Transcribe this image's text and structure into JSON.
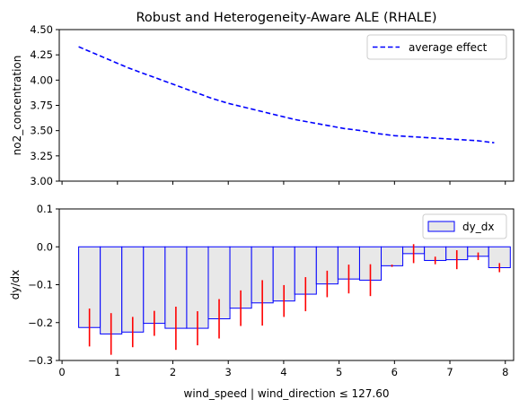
{
  "chart_data": [
    {
      "type": "line",
      "title": "Robust and Heterogeneity-Aware ALE (RHALE)",
      "xlabel": "",
      "ylabel": "no2_concentration",
      "xlim": [
        -0.05,
        8.15
      ],
      "ylim": [
        3.0,
        4.5
      ],
      "yticks": [
        "3.00",
        "3.25",
        "3.50",
        "3.75",
        "4.00",
        "4.25",
        "4.50"
      ],
      "grid": false,
      "legend_position": "top-right",
      "series": [
        {
          "name": "average effect",
          "color": "#0000ff",
          "style": "dashed",
          "x": [
            0.3,
            0.6,
            0.9,
            1.2,
            1.5,
            1.8,
            2.1,
            2.4,
            2.7,
            3.0,
            3.3,
            3.6,
            3.9,
            4.2,
            4.5,
            4.8,
            5.1,
            5.4,
            5.7,
            6.0,
            6.3,
            6.6,
            6.9,
            7.2,
            7.5,
            7.8
          ],
          "y": [
            4.33,
            4.26,
            4.19,
            4.12,
            4.06,
            4.0,
            3.94,
            3.88,
            3.82,
            3.77,
            3.73,
            3.69,
            3.65,
            3.61,
            3.58,
            3.55,
            3.52,
            3.5,
            3.47,
            3.45,
            3.44,
            3.43,
            3.42,
            3.41,
            3.4,
            3.38
          ]
        }
      ]
    },
    {
      "type": "bar",
      "title": "",
      "xlabel": "wind_speed | wind_direction ≤ 127.60",
      "ylabel": "dy/dx",
      "xlim": [
        -0.05,
        8.15
      ],
      "ylim": [
        -0.3,
        0.1
      ],
      "xticks": [
        "0",
        "1",
        "2",
        "3",
        "4",
        "5",
        "6",
        "7",
        "8"
      ],
      "yticks": [
        "−0.3",
        "−0.2",
        "−0.1",
        "0.0",
        "0.1"
      ],
      "grid": false,
      "legend_position": "top-right",
      "bar_fill": "#e8e8e8",
      "bar_edge": "#0000ff",
      "error_color": "#ff0000",
      "series": [
        {
          "name": "dy_dx",
          "bin_edges": [
            0.3,
            0.69,
            1.08,
            1.47,
            1.86,
            2.25,
            2.64,
            3.03,
            3.42,
            3.81,
            4.2,
            4.59,
            4.98,
            5.37,
            5.76,
            6.15,
            6.54,
            6.93,
            7.32,
            7.7
          ],
          "values": [
            -0.213,
            -0.23,
            -0.225,
            -0.202,
            -0.215,
            -0.215,
            -0.19,
            -0.162,
            -0.148,
            -0.143,
            -0.125,
            -0.098,
            -0.085,
            -0.088,
            -0.05,
            -0.018,
            -0.036,
            -0.034,
            -0.025,
            -0.055
          ],
          "errors": [
            0.05,
            0.055,
            0.04,
            0.033,
            0.057,
            0.045,
            0.052,
            0.047,
            0.06,
            0.042,
            0.045,
            0.035,
            0.038,
            0.042,
            0.003,
            0.025,
            0.01,
            0.025,
            0.01,
            0.012
          ]
        }
      ]
    }
  ]
}
